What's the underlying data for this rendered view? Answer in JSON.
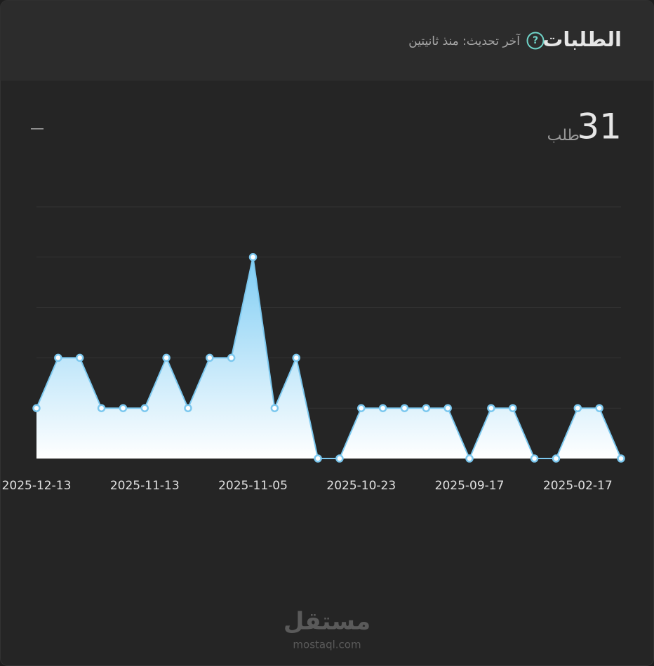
{
  "header": {
    "title": "الطلبات",
    "subtitle": "آخر تحديث: منذ ثانيتين"
  },
  "summary": {
    "value": "31",
    "unit": "طلب",
    "toggle": "—"
  },
  "chart_data": {
    "type": "area",
    "categories": [
      "2025-12-13",
      null,
      null,
      null,
      null,
      "2025-11-13",
      null,
      null,
      null,
      null,
      "2025-11-05",
      null,
      null,
      null,
      null,
      "2025-10-23",
      null,
      null,
      null,
      null,
      "2025-09-17",
      null,
      null,
      null,
      null,
      "2025-02-17",
      null,
      null
    ],
    "values": [
      1,
      2,
      2,
      1,
      1,
      1,
      2,
      1,
      2,
      2,
      4,
      1,
      2,
      0,
      0,
      1,
      1,
      1,
      1,
      1,
      0,
      1,
      1,
      0,
      0,
      1,
      1,
      0
    ],
    "color": "#7cc8ef",
    "ylim": [
      0,
      5
    ],
    "yticks": [
      0,
      1,
      2,
      3,
      4,
      5
    ],
    "grid": true
  },
  "watermark": {
    "logo": "مستقل",
    "url": "mostaql.com"
  }
}
